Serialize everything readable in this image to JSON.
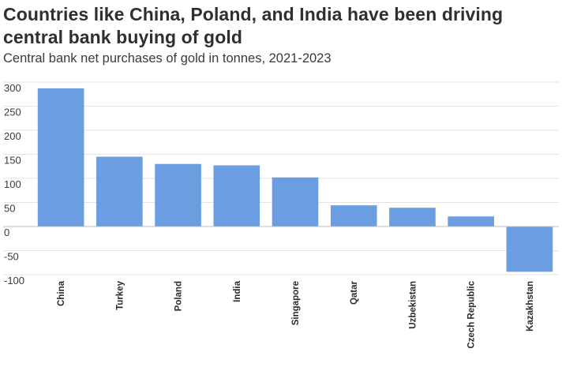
{
  "header": {
    "title_line1": "Countries like China, Poland, and India have been driving",
    "title_line2": "central bank buying of gold",
    "subtitle": "Central bank net purchases of gold in tonnes, 2021-2023"
  },
  "colors": {
    "bar": "#6b9ee0",
    "grid": "#e3e3e3",
    "zero_line": "#bdbdbd"
  },
  "chart_data": {
    "type": "bar",
    "title": "Countries like China, Poland, and India have been driving central bank buying of gold",
    "subtitle": "Central bank net purchases of gold in tonnes, 2021-2023",
    "xlabel": "",
    "ylabel": "",
    "categories": [
      "China",
      "Turkey",
      "Poland",
      "India",
      "Singapore",
      "Qatar",
      "Uzbekistan",
      "Czech Republic",
      "Kazakhstan"
    ],
    "values": [
      287,
      145,
      130,
      127,
      102,
      44,
      39,
      21,
      -94
    ],
    "ylim": [
      -100,
      300
    ],
    "yticks": [
      300,
      250,
      200,
      150,
      100,
      50,
      0,
      -50,
      -100
    ],
    "grid": true,
    "legend": "none"
  }
}
